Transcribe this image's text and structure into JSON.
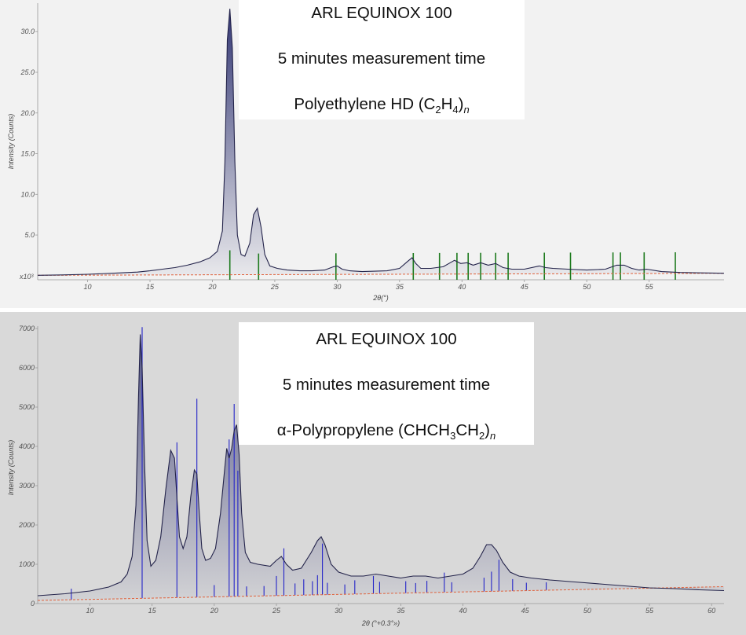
{
  "colors": {
    "panel_top": "#f2f2f2",
    "panel_bottom": "#d9d9d9",
    "curve": "#23234a",
    "fill": "#2a2e6e",
    "ref_top": "#1d7a1d",
    "ref_bottom": "#2424c8",
    "background_line": "#e0603a"
  },
  "chart_data": [
    {
      "type": "line",
      "title": "ARL EQUINOX 100",
      "subtitle": "5 minutes measurement time",
      "sample": {
        "name": "Polyethylene HD (C",
        "sub1": "2",
        "mid": "H",
        "sub2": "4",
        "close": ")",
        "suffix": "n"
      },
      "xlabel": "2θ(°)",
      "ylabel": "Intensity (Counts)",
      "y_multiplier_label": "x10³",
      "xlim": [
        6,
        61
      ],
      "ylim": [
        -0.5,
        33.5
      ],
      "x_ticks": [
        10,
        15,
        20,
        25,
        30,
        35,
        40,
        45,
        50,
        55
      ],
      "y_ticks": [
        5.0,
        10.0,
        15.0,
        20.0,
        25.0,
        30.0
      ],
      "series": [
        {
          "x": [
            6,
            8,
            10,
            12,
            14,
            15,
            16,
            17,
            18,
            19,
            19.8,
            20.4,
            20.8,
            21.0,
            21.2,
            21.4,
            21.6,
            21.8,
            22.0,
            22.3,
            22.6,
            23.0,
            23.3,
            23.6,
            23.9,
            24.2,
            24.6,
            25.2,
            26,
            27,
            28,
            29,
            29.7,
            30.0,
            30.4,
            31,
            32,
            33,
            34,
            35,
            35.6,
            36.0,
            36.3,
            36.7,
            37.5,
            38.5,
            39.4,
            39.9,
            40.4,
            40.9,
            41.5,
            42.1,
            42.7,
            43.3,
            44,
            45,
            46.2,
            46.7,
            47.3,
            48.5,
            50,
            51.5,
            52.4,
            53,
            53.6,
            54.2,
            54.8,
            56,
            57.5,
            59,
            61
          ],
          "y": [
            0.05,
            0.1,
            0.18,
            0.3,
            0.45,
            0.6,
            0.8,
            1.0,
            1.3,
            1.7,
            2.2,
            3.0,
            5.5,
            14.0,
            29.0,
            32.8,
            28.0,
            14.0,
            5.0,
            2.6,
            2.4,
            4.0,
            7.5,
            8.3,
            6.0,
            2.6,
            1.2,
            0.9,
            0.7,
            0.6,
            0.6,
            0.7,
            1.1,
            1.2,
            0.8,
            0.6,
            0.5,
            0.55,
            0.6,
            0.9,
            1.7,
            2.2,
            1.5,
            0.9,
            0.9,
            1.1,
            1.9,
            1.5,
            1.6,
            1.3,
            1.6,
            1.3,
            1.5,
            1.0,
            0.8,
            0.8,
            1.2,
            1.0,
            0.9,
            0.8,
            0.7,
            0.8,
            1.3,
            1.3,
            0.9,
            0.7,
            0.8,
            0.5,
            0.4,
            0.35,
            0.3
          ]
        }
      ],
      "background_line": {
        "x": [
          6,
          61
        ],
        "y": [
          0.05,
          0.3
        ]
      },
      "reference_peaks": [
        {
          "x": 21.4,
          "h": 3.0
        },
        {
          "x": 23.7,
          "h": 2.6
        },
        {
          "x": 29.9,
          "h": 2.6
        },
        {
          "x": 36.1,
          "h": 2.6
        },
        {
          "x": 38.2,
          "h": 2.6
        },
        {
          "x": 39.6,
          "h": 2.6
        },
        {
          "x": 40.5,
          "h": 2.6
        },
        {
          "x": 41.5,
          "h": 2.6
        },
        {
          "x": 42.7,
          "h": 2.6
        },
        {
          "x": 43.7,
          "h": 2.6
        },
        {
          "x": 46.6,
          "h": 2.6
        },
        {
          "x": 48.7,
          "h": 2.6
        },
        {
          "x": 52.1,
          "h": 2.6
        },
        {
          "x": 52.7,
          "h": 2.6
        },
        {
          "x": 54.6,
          "h": 2.6
        },
        {
          "x": 57.1,
          "h": 2.6
        }
      ]
    },
    {
      "type": "line",
      "title": "ARL EQUINOX 100",
      "subtitle": "5 minutes measurement time",
      "sample": {
        "name": "α-Polypropylene (CHCH",
        "sub1": "3",
        "mid": "CH",
        "sub2": "2",
        "close": ")",
        "suffix": "n"
      },
      "xlabel": "2θ (°+0.3°»)",
      "ylabel": "Intensity (Counts)",
      "xlim": [
        5.8,
        61
      ],
      "ylim": [
        0,
        7000
      ],
      "x_ticks": [
        10,
        15,
        20,
        25,
        30,
        35,
        40,
        45,
        50,
        55,
        60
      ],
      "y_ticks": [
        0,
        1000,
        2000,
        3000,
        4000,
        5000,
        6000,
        7000
      ],
      "series": [
        {
          "x": [
            5.8,
            8,
            10,
            11.5,
            12.5,
            13.0,
            13.4,
            13.7,
            13.9,
            14.05,
            14.2,
            14.4,
            14.6,
            14.9,
            15.3,
            15.7,
            16.1,
            16.5,
            16.8,
            17.0,
            17.2,
            17.5,
            17.8,
            18.1,
            18.4,
            18.6,
            18.8,
            19.0,
            19.3,
            19.7,
            20.1,
            20.5,
            20.8,
            21.0,
            21.2,
            21.4,
            21.6,
            21.8,
            22.0,
            22.2,
            22.5,
            22.9,
            23.5,
            24.5,
            25.0,
            25.4,
            25.8,
            26.3,
            27,
            27.8,
            28.3,
            28.6,
            28.9,
            29.4,
            30,
            31,
            32,
            33,
            34,
            35,
            36,
            37,
            38,
            39,
            40,
            40.8,
            41.4,
            41.9,
            42.3,
            42.7,
            43.2,
            43.8,
            44.5,
            45.5,
            47,
            49,
            51,
            53,
            55,
            57,
            59,
            61
          ],
          "y": [
            200,
            250,
            320,
            420,
            550,
            750,
            1200,
            2500,
            5200,
            6850,
            6000,
            3500,
            1600,
            950,
            1100,
            1700,
            2900,
            3900,
            3700,
            2700,
            1700,
            1400,
            1700,
            2700,
            3400,
            3300,
            2300,
            1400,
            1100,
            1150,
            1400,
            2300,
            3300,
            3950,
            3700,
            3950,
            4400,
            4550,
            3800,
            2300,
            1300,
            1050,
            1000,
            950,
            1100,
            1200,
            1000,
            850,
            900,
            1300,
            1600,
            1700,
            1500,
            1000,
            800,
            700,
            700,
            750,
            700,
            650,
            700,
            700,
            650,
            700,
            750,
            900,
            1200,
            1500,
            1500,
            1350,
            1050,
            800,
            700,
            650,
            600,
            550,
            500,
            450,
            400,
            380,
            350,
            330
          ]
        }
      ],
      "background_line": {
        "x": [
          5.8,
          61
        ],
        "y": [
          80,
          430
        ]
      },
      "reference_peaks": [
        {
          "x": 8.5,
          "h": 280
        },
        {
          "x": 14.2,
          "h": 6900
        },
        {
          "x": 17.0,
          "h": 3950
        },
        {
          "x": 18.6,
          "h": 5050
        },
        {
          "x": 20.0,
          "h": 300
        },
        {
          "x": 21.2,
          "h": 4000
        },
        {
          "x": 21.6,
          "h": 4900
        },
        {
          "x": 21.9,
          "h": 3200
        },
        {
          "x": 22.6,
          "h": 250
        },
        {
          "x": 24.0,
          "h": 250
        },
        {
          "x": 25.0,
          "h": 500
        },
        {
          "x": 25.6,
          "h": 1200
        },
        {
          "x": 26.5,
          "h": 300
        },
        {
          "x": 27.2,
          "h": 400
        },
        {
          "x": 27.9,
          "h": 350
        },
        {
          "x": 28.3,
          "h": 500
        },
        {
          "x": 28.7,
          "h": 1300
        },
        {
          "x": 29.1,
          "h": 300
        },
        {
          "x": 30.5,
          "h": 250
        },
        {
          "x": 31.3,
          "h": 350
        },
        {
          "x": 32.8,
          "h": 450
        },
        {
          "x": 33.3,
          "h": 300
        },
        {
          "x": 35.4,
          "h": 300
        },
        {
          "x": 36.2,
          "h": 250
        },
        {
          "x": 37.1,
          "h": 300
        },
        {
          "x": 38.5,
          "h": 500
        },
        {
          "x": 39.1,
          "h": 250
        },
        {
          "x": 41.7,
          "h": 350
        },
        {
          "x": 42.3,
          "h": 500
        },
        {
          "x": 42.9,
          "h": 800
        },
        {
          "x": 44.0,
          "h": 300
        },
        {
          "x": 45.1,
          "h": 200
        },
        {
          "x": 46.7,
          "h": 200
        }
      ]
    }
  ]
}
